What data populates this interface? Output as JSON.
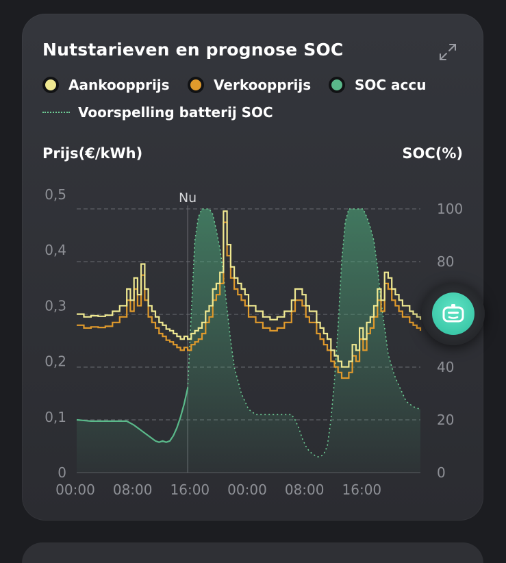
{
  "card": {
    "title": "Nutstarieven en prognose SOC",
    "expand_icon": "expand-icon"
  },
  "legend": [
    {
      "label": "Aankoopprijs",
      "color": "#efe891"
    },
    {
      "label": "Verkoopprijs",
      "color": "#e09a2c"
    },
    {
      "label": "SOC accu",
      "color": "#5ab98a"
    },
    {
      "label": "Voorspelling batterij SOC",
      "color": "#6fcf97"
    }
  ],
  "axes": {
    "left_title": "Prijs(€/kWh)",
    "right_title": "SOC(%)",
    "left_ticks": [
      "0",
      "0,1",
      "0,2",
      "0,3",
      "0,4",
      "0,5"
    ],
    "right_ticks": [
      "0",
      "20",
      "40",
      "60",
      "80",
      "100"
    ],
    "x_ticks": [
      "00:00",
      "08:00",
      "16:00",
      "00:00",
      "08:00",
      "16:00"
    ],
    "now_label": "Nu"
  },
  "fab": {
    "icon": "assistant-bot-icon"
  },
  "chart_data": {
    "type": "line",
    "xlabel": "",
    "ylabel_left": "Prijs(€/kWh)",
    "ylabel_right": "SOC(%)",
    "x_unit": "hour",
    "xlim": [
      0,
      48
    ],
    "ylim_left": [
      0,
      0.5
    ],
    "ylim_right": [
      0,
      100
    ],
    "now_x": 15.5,
    "grid": "horizontal dashed",
    "series": [
      {
        "name": "Aankoopprijs",
        "axis": "left",
        "step": true,
        "x": [
          0,
          1,
          2,
          3,
          4,
          5,
          6,
          7,
          7.5,
          8,
          8.5,
          9,
          9.5,
          10,
          10.5,
          11,
          11.5,
          12,
          12.5,
          13,
          13.5,
          14,
          14.5,
          15,
          15.5,
          16,
          16.5,
          17,
          17.5,
          18,
          18.5,
          19,
          19.5,
          20,
          20.5,
          21,
          21.5,
          22,
          22.5,
          23,
          23.5,
          24,
          25,
          26,
          27,
          28,
          29,
          30,
          30.5,
          31,
          31.5,
          32,
          32.5,
          33,
          33.5,
          34,
          34.5,
          35,
          35.5,
          36,
          36.5,
          37,
          37.5,
          38,
          38.5,
          39,
          39.5,
          40,
          40.5,
          41,
          41.5,
          42,
          42.5,
          43,
          43.5,
          44,
          44.5,
          45,
          45.5,
          46,
          46.5,
          47,
          47.5,
          48
        ],
        "values": [
          0.285,
          0.28,
          0.282,
          0.281,
          0.283,
          0.29,
          0.3,
          0.33,
          0.31,
          0.35,
          0.32,
          0.375,
          0.33,
          0.3,
          0.29,
          0.28,
          0.27,
          0.265,
          0.258,
          0.255,
          0.25,
          0.245,
          0.24,
          0.245,
          0.24,
          0.25,
          0.255,
          0.26,
          0.27,
          0.29,
          0.3,
          0.33,
          0.34,
          0.36,
          0.47,
          0.41,
          0.37,
          0.35,
          0.34,
          0.33,
          0.32,
          0.3,
          0.29,
          0.28,
          0.275,
          0.28,
          0.29,
          0.31,
          0.33,
          0.33,
          0.32,
          0.3,
          0.29,
          0.29,
          0.27,
          0.26,
          0.25,
          0.24,
          0.22,
          0.21,
          0.2,
          0.19,
          0.19,
          0.2,
          0.23,
          0.22,
          0.26,
          0.24,
          0.27,
          0.28,
          0.3,
          0.33,
          0.31,
          0.36,
          0.35,
          0.33,
          0.32,
          0.31,
          0.3,
          0.3,
          0.29,
          0.285,
          0.28,
          0.275
        ]
      },
      {
        "name": "Verkoopprijs",
        "axis": "left",
        "step": true,
        "x": [
          0,
          1,
          2,
          3,
          4,
          5,
          6,
          7,
          7.5,
          8,
          8.5,
          9,
          9.5,
          10,
          10.5,
          11,
          11.5,
          12,
          12.5,
          13,
          13.5,
          14,
          14.5,
          15,
          15.5,
          16,
          16.5,
          17,
          17.5,
          18,
          18.5,
          19,
          19.5,
          20,
          20.5,
          21,
          21.5,
          22,
          22.5,
          23,
          23.5,
          24,
          25,
          26,
          27,
          28,
          29,
          30,
          30.5,
          31,
          31.5,
          32,
          32.5,
          33,
          33.5,
          34,
          34.5,
          35,
          35.5,
          36,
          36.5,
          37,
          37.5,
          38,
          38.5,
          39,
          39.5,
          40,
          40.5,
          41,
          41.5,
          42,
          42.5,
          43,
          43.5,
          44,
          44.5,
          45,
          45.5,
          46,
          46.5,
          47,
          47.5,
          48
        ],
        "values": [
          0.265,
          0.26,
          0.262,
          0.261,
          0.263,
          0.27,
          0.28,
          0.31,
          0.29,
          0.33,
          0.3,
          0.355,
          0.31,
          0.28,
          0.27,
          0.26,
          0.25,
          0.245,
          0.238,
          0.235,
          0.23,
          0.225,
          0.22,
          0.225,
          0.22,
          0.23,
          0.235,
          0.24,
          0.25,
          0.27,
          0.28,
          0.31,
          0.32,
          0.34,
          0.45,
          0.39,
          0.35,
          0.33,
          0.32,
          0.31,
          0.3,
          0.28,
          0.27,
          0.26,
          0.255,
          0.26,
          0.27,
          0.29,
          0.31,
          0.31,
          0.3,
          0.28,
          0.27,
          0.27,
          0.25,
          0.24,
          0.23,
          0.22,
          0.2,
          0.19,
          0.18,
          0.17,
          0.17,
          0.18,
          0.21,
          0.2,
          0.24,
          0.22,
          0.25,
          0.26,
          0.28,
          0.31,
          0.29,
          0.34,
          0.33,
          0.31,
          0.3,
          0.29,
          0.28,
          0.28,
          0.27,
          0.265,
          0.26,
          0.255
        ]
      },
      {
        "name": "SOC accu",
        "axis": "right",
        "x": [
          0,
          2,
          4,
          6,
          7,
          8,
          9,
          10,
          11,
          11.5,
          12,
          12.5,
          13,
          13.5,
          14,
          14.5,
          15,
          15.5
        ],
        "values": [
          20,
          19.5,
          19.5,
          19.5,
          19.5,
          18,
          16,
          14,
          12,
          11.5,
          12,
          11.5,
          12,
          14,
          17,
          21,
          26,
          32
        ]
      },
      {
        "name": "Voorspelling batterij SOC",
        "axis": "right",
        "x": [
          15.5,
          16,
          16.5,
          17,
          17.5,
          18,
          18.5,
          19,
          19.5,
          20,
          20.5,
          21,
          21.5,
          22,
          23,
          24,
          25,
          26,
          28,
          30,
          30.5,
          31,
          31.5,
          32,
          32.5,
          33,
          33.5,
          34,
          34.5,
          35,
          35.5,
          36,
          36.5,
          37,
          37.5,
          38,
          38.5,
          39,
          39.5,
          40,
          40.5,
          41,
          41.5,
          42,
          42.5,
          43,
          43.5,
          44,
          44.5,
          45,
          45.5,
          46,
          47,
          48
        ],
        "values": [
          32,
          60,
          88,
          97,
          100,
          100,
          100,
          98,
          92,
          85,
          75,
          62,
          50,
          40,
          30,
          24,
          22,
          22,
          22,
          22,
          20,
          17,
          13,
          10,
          8,
          7,
          6,
          6,
          7,
          10,
          20,
          35,
          55,
          80,
          95,
          100,
          100,
          100,
          100,
          100,
          97,
          93,
          88,
          78,
          65,
          55,
          45,
          40,
          36,
          33,
          30,
          27,
          25,
          24
        ]
      }
    ]
  }
}
